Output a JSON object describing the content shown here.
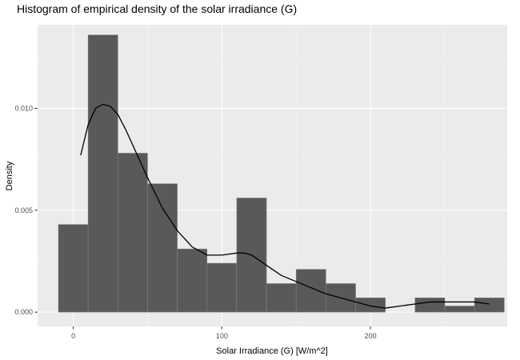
{
  "chart_data": {
    "type": "bar",
    "title": "Histogram of empirical density of the solar irradiance (G)",
    "xlabel": "Solar Irradiance (G) [W/m^2]",
    "ylabel": "Density",
    "xlim": [
      -24,
      292
    ],
    "ylim": [
      -0.0007,
      0.0141
    ],
    "x_ticks": [
      0,
      100,
      200
    ],
    "x_tick_labels": [
      "0",
      "100",
      "200"
    ],
    "y_ticks": [
      0,
      0.005,
      0.01
    ],
    "y_tick_labels": [
      "0.000",
      "0.005",
      "0.010"
    ],
    "grid": true,
    "bins": [
      {
        "x0": -10,
        "x1": 10,
        "density": 0.0043
      },
      {
        "x0": 10,
        "x1": 30,
        "density": 0.0136
      },
      {
        "x0": 30,
        "x1": 50,
        "density": 0.0078
      },
      {
        "x0": 50,
        "x1": 70,
        "density": 0.0063
      },
      {
        "x0": 70,
        "x1": 90,
        "density": 0.0031
      },
      {
        "x0": 90,
        "x1": 110,
        "density": 0.0024
      },
      {
        "x0": 110,
        "x1": 130,
        "density": 0.0056
      },
      {
        "x0": 130,
        "x1": 150,
        "density": 0.0014
      },
      {
        "x0": 150,
        "x1": 170,
        "density": 0.0021
      },
      {
        "x0": 170,
        "x1": 190,
        "density": 0.0014
      },
      {
        "x0": 190,
        "x1": 210,
        "density": 0.0007
      },
      {
        "x0": 210,
        "x1": 230,
        "density": 0.0
      },
      {
        "x0": 230,
        "x1": 250,
        "density": 0.0007
      },
      {
        "x0": 250,
        "x1": 270,
        "density": 0.0003
      },
      {
        "x0": 270,
        "x1": 290,
        "density": 0.0007
      }
    ],
    "density_curve": {
      "x": [
        5,
        10,
        15,
        20,
        25,
        30,
        35,
        40,
        50,
        60,
        70,
        80,
        90,
        100,
        110,
        115,
        120,
        130,
        140,
        150,
        160,
        170,
        180,
        190,
        200,
        210,
        220,
        230,
        240,
        250,
        260,
        270,
        280
      ],
      "y": [
        0.0077,
        0.0092,
        0.01,
        0.0102,
        0.0101,
        0.0097,
        0.009,
        0.0082,
        0.0066,
        0.0051,
        0.004,
        0.0032,
        0.0028,
        0.0028,
        0.0029,
        0.0029,
        0.0028,
        0.0023,
        0.0018,
        0.0015,
        0.0012,
        0.0009,
        0.0007,
        0.0005,
        0.0003,
        0.0002,
        0.0003,
        0.0004,
        0.0005,
        0.0005,
        0.0005,
        0.0005,
        0.0004
      ]
    },
    "colors": {
      "panel": "#EBEBEB",
      "grid_major": "#FFFFFF",
      "bar_fill": "#595959",
      "bar_outline": "#808080",
      "curve": "#000000",
      "text": "#1A1A1A",
      "tick_text": "#4D4D4D",
      "tick_mark": "#333333"
    }
  }
}
